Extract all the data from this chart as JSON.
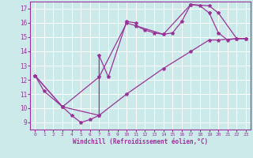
{
  "xlabel": "Windchill (Refroidissement éolien,°C)",
  "xlim": [
    -0.5,
    23.5
  ],
  "ylim": [
    8.5,
    17.5
  ],
  "xticks": [
    0,
    1,
    2,
    3,
    4,
    5,
    6,
    7,
    8,
    9,
    10,
    11,
    12,
    13,
    14,
    15,
    16,
    17,
    18,
    19,
    20,
    21,
    22,
    23
  ],
  "yticks": [
    9,
    10,
    11,
    12,
    13,
    14,
    15,
    16,
    17
  ],
  "bg_color": "#cceaea",
  "line_color": "#993399",
  "grid_color": "#aadddd",
  "line1_x": [
    0,
    1,
    3,
    4,
    5,
    6,
    7,
    7,
    8,
    10,
    11,
    11,
    12,
    13,
    14,
    15,
    16,
    17,
    17,
    18,
    19,
    20,
    21,
    22,
    23
  ],
  "line1_y": [
    12.3,
    11.2,
    10.1,
    9.5,
    9.0,
    9.2,
    9.5,
    13.7,
    12.2,
    16.1,
    16.0,
    15.8,
    15.5,
    15.3,
    15.2,
    15.3,
    16.1,
    17.3,
    17.3,
    17.2,
    16.7,
    15.3,
    14.8,
    14.9,
    14.9
  ],
  "line2_x": [
    0,
    3,
    7,
    10,
    14,
    17,
    19,
    20,
    22,
    23
  ],
  "line2_y": [
    12.3,
    10.1,
    12.2,
    16.0,
    15.2,
    17.3,
    17.2,
    16.7,
    14.9,
    14.9
  ],
  "line3_x": [
    0,
    3,
    7,
    10,
    14,
    17,
    19,
    20,
    22,
    23
  ],
  "line3_y": [
    12.3,
    10.1,
    9.5,
    11.0,
    12.8,
    14.0,
    14.8,
    14.8,
    14.9,
    14.9
  ]
}
